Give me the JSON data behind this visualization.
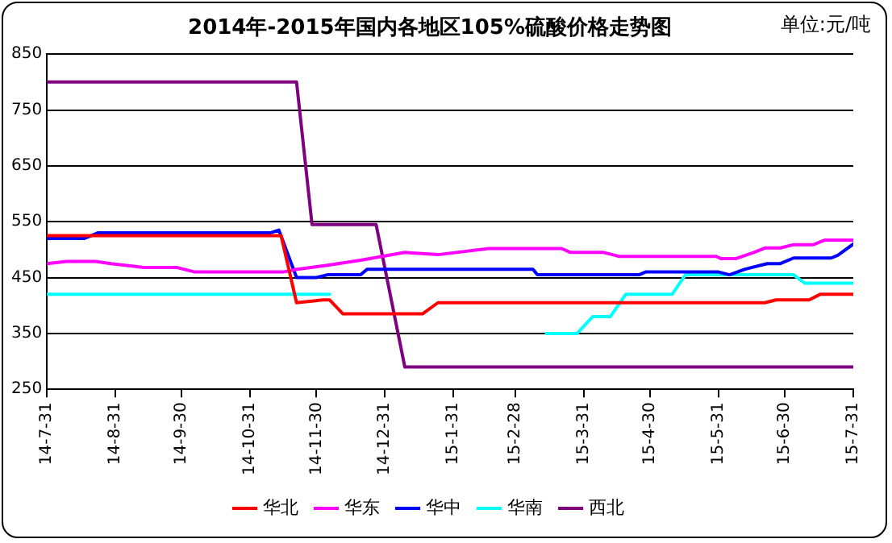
{
  "chart_data": {
    "type": "line",
    "title": "2014年-2015年国内各地区105%硫酸价格走势图",
    "annotations": [
      "单位:元/吨"
    ],
    "xlim": [
      "2014-07-31",
      "2015-07-31"
    ],
    "xticks": [
      {
        "value": "2014-07-31",
        "label": "14-7-31"
      },
      {
        "value": "2014-08-31",
        "label": "14-8-31"
      },
      {
        "value": "2014-09-30",
        "label": "14-9-30"
      },
      {
        "value": "2014-10-31",
        "label": "14-10-31"
      },
      {
        "value": "2014-11-30",
        "label": "14-11-30"
      },
      {
        "value": "2014-12-31",
        "label": "14-12-31"
      },
      {
        "value": "2015-01-31",
        "label": "15-1-31"
      },
      {
        "value": "2015-02-28",
        "label": "15-2-28"
      },
      {
        "value": "2015-03-31",
        "label": "15-3-31"
      },
      {
        "value": "2015-04-30",
        "label": "15-4-30"
      },
      {
        "value": "2015-05-31",
        "label": "15-5-31"
      },
      {
        "value": "2015-06-30",
        "label": "15-6-30"
      },
      {
        "value": "2015-07-31",
        "label": "15-7-31"
      }
    ],
    "ylim": [
      250,
      850
    ],
    "yticks": [
      250,
      350,
      450,
      550,
      650,
      750,
      850
    ],
    "grid": "y",
    "legend": "bottom",
    "series": [
      {
        "name": "华北",
        "color": "#ff0000",
        "x": [
          "2014-07-31",
          "2014-11-14",
          "2014-11-21",
          "2014-12-03",
          "2014-12-06",
          "2014-12-12",
          "2015-01-17",
          "2015-01-24",
          "2015-06-21",
          "2015-06-26",
          "2015-07-11",
          "2015-07-16",
          "2015-07-31"
        ],
        "values": [
          525,
          525,
          405,
          410,
          410,
          385,
          385,
          405,
          405,
          410,
          410,
          420,
          420
        ]
      },
      {
        "name": "华东",
        "color": "#ff00ff",
        "x": [
          "2014-07-31",
          "2014-08-09",
          "2014-08-22",
          "2014-08-29",
          "2014-09-13",
          "2014-09-28",
          "2014-10-06",
          "2014-11-15",
          "2014-11-20",
          "2014-12-05",
          "2014-12-20",
          "2015-01-09",
          "2015-01-24",
          "2015-02-16",
          "2015-03-21",
          "2015-03-25",
          "2015-04-09",
          "2015-04-16",
          "2015-05-30",
          "2015-06-01",
          "2015-06-08",
          "2015-06-16",
          "2015-06-21",
          "2015-06-28",
          "2015-07-04",
          "2015-07-13",
          "2015-07-18",
          "2015-07-31"
        ],
        "values": [
          475,
          479,
          479,
          475,
          468,
          468,
          460,
          460,
          464,
          472,
          481,
          495,
          491,
          502,
          502,
          495,
          495,
          488,
          488,
          484,
          484,
          495,
          503,
          503,
          509,
          509,
          517,
          517
        ]
      },
      {
        "name": "华中",
        "color": "#0000ff",
        "x": [
          "2014-07-31",
          "2014-08-17",
          "2014-08-23",
          "2014-11-09",
          "2014-11-13",
          "2014-11-21",
          "2014-11-30",
          "2014-12-05",
          "2014-12-20",
          "2014-12-23",
          "2015-03-08",
          "2015-03-10",
          "2015-04-25",
          "2015-04-28",
          "2015-05-31",
          "2015-06-05",
          "2015-06-12",
          "2015-06-22",
          "2015-06-28",
          "2015-07-04",
          "2015-07-21",
          "2015-07-24",
          "2015-07-31"
        ],
        "values": [
          520,
          520,
          530,
          530,
          535,
          450,
          450,
          455,
          455,
          465,
          465,
          455,
          455,
          460,
          460,
          455,
          465,
          475,
          475,
          485,
          485,
          490,
          510
        ]
      },
      {
        "name": "华南",
        "color": "#00ffff",
        "x": [
          "2014-07-31",
          "2014-12-06",
          "2015-01-01",
          "2015-03-14",
          "2015-03-28",
          "2015-04-04",
          "2015-04-12",
          "2015-04-19",
          "2015-05-10",
          "2015-05-16",
          "2015-07-04",
          "2015-07-09",
          "2015-07-31"
        ],
        "values": [
          420,
          420,
          null,
          350,
          350,
          380,
          380,
          420,
          420,
          455,
          455,
          440,
          440
        ]
      },
      {
        "name": "西北",
        "color": "#800080",
        "x": [
          "2014-07-31",
          "2014-11-21",
          "2014-11-28",
          "2014-12-27",
          "2015-01-09",
          "2015-07-31"
        ],
        "values": [
          800,
          800,
          545,
          545,
          290,
          290
        ]
      }
    ]
  }
}
